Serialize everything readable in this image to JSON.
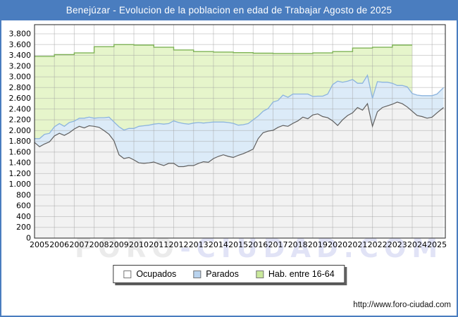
{
  "title_bar": {
    "text": "Benejúzar - Evolucion de la poblacion en edad de Trabajar Agosto de 2025",
    "bg_color": "#4a7dbf"
  },
  "watermark": {
    "part1": "FORO",
    "part2": "-CIUDAD.COM"
  },
  "footer": {
    "url": "http://www.foro-ciudad.com"
  },
  "legend": {
    "items": [
      {
        "key": "ocupados",
        "label": "Ocupados",
        "swatch_color": "#ffffff"
      },
      {
        "key": "parados",
        "label": "Parados",
        "swatch_color": "#b9d3ee"
      },
      {
        "key": "hab",
        "label": "Hab. entre 16-64",
        "swatch_color": "#c9e89b"
      }
    ]
  },
  "chart_data": {
    "type": "area",
    "title": "Benejúzar - Evolucion de la poblacion en edad de Trabajar Agosto de 2025",
    "xlabel": "",
    "ylabel": "",
    "grid": true,
    "legend_position": "bottom",
    "xlim": [
      2005,
      2025.6667
    ],
    "ylim": [
      0,
      3970
    ],
    "y_tick_step": 200,
    "y_tick_labels": [
      "0",
      "200",
      "400",
      "600",
      "800",
      "1.000",
      "1.200",
      "1.400",
      "1.600",
      "1.800",
      "2.000",
      "2.200",
      "2.400",
      "2.600",
      "2.800",
      "3.000",
      "3.200",
      "3.400",
      "3.600",
      "3.800"
    ],
    "x_tick_labels": [
      "2005",
      "2006",
      "2007",
      "2008",
      "2009",
      "2010",
      "2011",
      "2012",
      "2013",
      "2014",
      "2015",
      "2016",
      "2017",
      "2018",
      "2019",
      "2020",
      "2021",
      "2022",
      "2023",
      "2024",
      "2025"
    ],
    "x": [
      2005,
      2005.25,
      2005.5,
      2005.75,
      2006,
      2006.25,
      2006.5,
      2006.75,
      2007,
      2007.25,
      2007.5,
      2007.75,
      2008,
      2008.25,
      2008.5,
      2008.75,
      2009,
      2009.25,
      2009.5,
      2009.75,
      2010,
      2010.25,
      2010.5,
      2010.75,
      2011,
      2011.25,
      2011.5,
      2011.75,
      2012,
      2012.25,
      2012.5,
      2012.75,
      2013,
      2013.25,
      2013.5,
      2013.75,
      2014,
      2014.25,
      2014.5,
      2014.75,
      2015,
      2015.25,
      2015.5,
      2015.75,
      2016,
      2016.25,
      2016.5,
      2016.75,
      2017,
      2017.25,
      2017.5,
      2017.75,
      2018,
      2018.25,
      2018.5,
      2018.75,
      2019,
      2019.25,
      2019.5,
      2019.75,
      2020,
      2020.25,
      2020.5,
      2020.75,
      2021,
      2021.25,
      2021.5,
      2021.75,
      2022,
      2022.25,
      2022.5,
      2022.75,
      2023,
      2023.25,
      2023.5,
      2023.75,
      2024,
      2024.25,
      2024.5,
      2024.75,
      2025,
      2025.25,
      2025.58
    ],
    "series": [
      {
        "key": "ocupados",
        "name": "Ocupados",
        "render": "area",
        "fill": "#f2f2f2",
        "line": "#5f5f5f",
        "values": [
          1780,
          1700,
          1750,
          1790,
          1900,
          1950,
          1910,
          1960,
          2030,
          2080,
          2050,
          2090,
          2080,
          2060,
          2000,
          1930,
          1810,
          1550,
          1480,
          1500,
          1455,
          1400,
          1390,
          1400,
          1415,
          1380,
          1350,
          1390,
          1390,
          1330,
          1330,
          1350,
          1350,
          1390,
          1420,
          1410,
          1480,
          1520,
          1550,
          1520,
          1500,
          1540,
          1570,
          1610,
          1655,
          1850,
          1960,
          1990,
          2005,
          2060,
          2095,
          2080,
          2135,
          2180,
          2250,
          2220,
          2290,
          2310,
          2260,
          2240,
          2180,
          2095,
          2200,
          2280,
          2330,
          2430,
          2380,
          2500,
          2080,
          2350,
          2430,
          2460,
          2490,
          2530,
          2500,
          2440,
          2360,
          2280,
          2260,
          2230,
          2250,
          2330,
          2430
        ]
      },
      {
        "key": "parados",
        "name": "Parados",
        "render": "area-stacked-on-ocupados",
        "fill": "#dcebf8",
        "line": "#8cb4de",
        "values": [
          70,
          150,
          180,
          160,
          170,
          180,
          170,
          190,
          145,
          150,
          180,
          160,
          150,
          180,
          240,
          320,
          350,
          520,
          530,
          540,
          585,
          680,
          700,
          700,
          705,
          750,
          770,
          740,
          790,
          820,
          800,
          770,
          790,
          760,
          720,
          740,
          680,
          640,
          610,
          630,
          635,
          560,
          540,
          520,
          545,
          420,
          400,
          420,
          525,
          500,
          565,
          540,
          545,
          500,
          430,
          460,
          345,
          330,
          380,
          440,
          675,
          825,
          700,
          640,
          620,
          450,
          500,
          530,
          520,
          560,
          470,
          440,
          390,
          310,
          340,
          375,
          330,
          380,
          390,
          420,
          400,
          350,
          370
        ]
      },
      {
        "key": "hab",
        "name": "Hab. entre 16-64",
        "render": "step-annual",
        "fill": "#e6f5cb",
        "line": "#7fb357",
        "years": [
          2005,
          2006,
          2007,
          2008,
          2009,
          2010,
          2011,
          2012,
          2013,
          2014,
          2015,
          2016,
          2017,
          2018,
          2019,
          2020,
          2021,
          2022,
          2023
        ],
        "values": [
          3380,
          3415,
          3445,
          3560,
          3600,
          3590,
          3550,
          3500,
          3470,
          3460,
          3450,
          3440,
          3435,
          3435,
          3445,
          3470,
          3535,
          3550,
          3590
        ]
      }
    ]
  }
}
